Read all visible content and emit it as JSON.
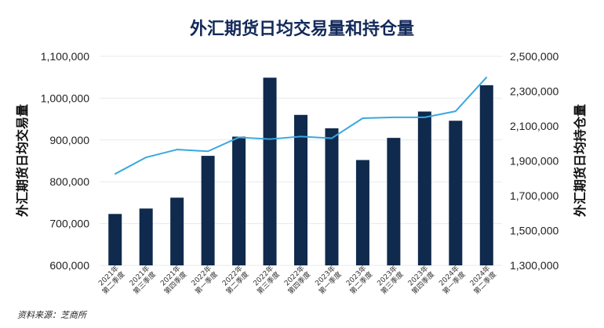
{
  "chart_data": {
    "type": "bar+line",
    "title": "外汇期货日均交易量和持仓量",
    "ylabel_left": "外汇期货日均交易量",
    "ylabel_right": "外汇期货日均持仓量",
    "source": "资料来源：芝商所",
    "categories": [
      [
        "2021年",
        "第二季度"
      ],
      [
        "2021年",
        "第三季度"
      ],
      [
        "2021年",
        "第四季度"
      ],
      [
        "2022年",
        "第一季度"
      ],
      [
        "2022年",
        "第二季度"
      ],
      [
        "2022年",
        "第三季度"
      ],
      [
        "2022年",
        "第四季度"
      ],
      [
        "2023年",
        "第一季度"
      ],
      [
        "2023年",
        "第二季度"
      ],
      [
        "2023年",
        "第三季度"
      ],
      [
        "2023年",
        "第四季度"
      ],
      [
        "2024年",
        "第一季度"
      ],
      [
        "2024年",
        "第二季度"
      ]
    ],
    "y_left": {
      "min": 600000,
      "max": 1100000,
      "ticks": [
        "600,000",
        "700,000",
        "800,000",
        "900,000",
        "1,000,000",
        "1,100,000"
      ]
    },
    "y_right": {
      "min": 1300000,
      "max": 2500000,
      "ticks": [
        "1,300,000",
        "1,500,000",
        "1,700,000",
        "1,900,000",
        "2,100,000",
        "2,300,000",
        "2,500,000"
      ]
    },
    "series": [
      {
        "axis": "left",
        "chart": "bar",
        "color": "#0f2a4d",
        "values": [
          723000,
          736000,
          762000,
          862000,
          908000,
          1049000,
          960000,
          928000,
          852000,
          905000,
          968000,
          946000,
          1031000
        ]
      },
      {
        "axis": "right",
        "chart": "line",
        "color": "#3aa8df",
        "values": [
          1825000,
          1920000,
          1965000,
          1955000,
          2035000,
          2025000,
          2040000,
          2030000,
          2145000,
          2150000,
          2150000,
          2185000,
          2380000
        ]
      }
    ],
    "grid": true
  }
}
